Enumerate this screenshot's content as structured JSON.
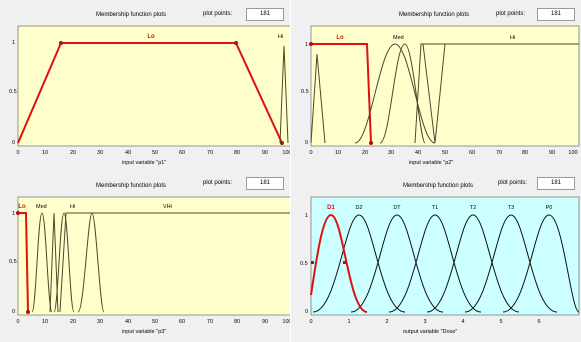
{
  "colors": {
    "input_bg": "#ffffcc",
    "output_bg": "#ccffff",
    "selected": "#e01010",
    "curve": "#4a4a2a"
  },
  "panels": [
    {
      "title": "Membership function plots",
      "plot_points_label": "plot points:",
      "plot_points_value": "181",
      "axis_label": "input variable \"p1\"",
      "xticks": [
        "0",
        "10",
        "20",
        "30",
        "40",
        "50",
        "60",
        "70",
        "80",
        "90",
        "100"
      ],
      "yticks": [
        "0",
        "0.5",
        "1"
      ],
      "mf_labels": [
        "Lo",
        "Hi"
      ]
    },
    {
      "title": "Membership function plots",
      "plot_points_label": "plot points:",
      "plot_points_value": "181",
      "axis_label": "input variable \"p2\"",
      "xticks": [
        "0",
        "10",
        "20",
        "30",
        "40",
        "50",
        "60",
        "70",
        "80",
        "90",
        "100"
      ],
      "yticks": [
        "0",
        "0.5",
        "1"
      ],
      "mf_labels": [
        "Lo",
        "Med",
        "Hi"
      ]
    },
    {
      "title": "Membership function plots",
      "plot_points_label": "plot points:",
      "plot_points_value": "181",
      "axis_label": "input variable \"p3\"",
      "xticks": [
        "0",
        "10",
        "20",
        "30",
        "40",
        "50",
        "60",
        "70",
        "80",
        "90",
        "100"
      ],
      "yticks": [
        "0",
        "0.5",
        "1"
      ],
      "mf_labels": [
        "Lo",
        "Med",
        "Hi",
        "VHi"
      ]
    },
    {
      "title": "Membership function plots",
      "plot_points_label": "plot points:",
      "plot_points_value": "181",
      "axis_label": "output variable \"Dose\"",
      "xticks": [
        "0",
        "1",
        "2",
        "3",
        "4",
        "5",
        "6"
      ],
      "yticks": [
        "0",
        "0.5",
        "1"
      ],
      "mf_labels": [
        "D1",
        "D2",
        "DT",
        "T1",
        "T2",
        "T3",
        "P0"
      ]
    }
  ]
}
